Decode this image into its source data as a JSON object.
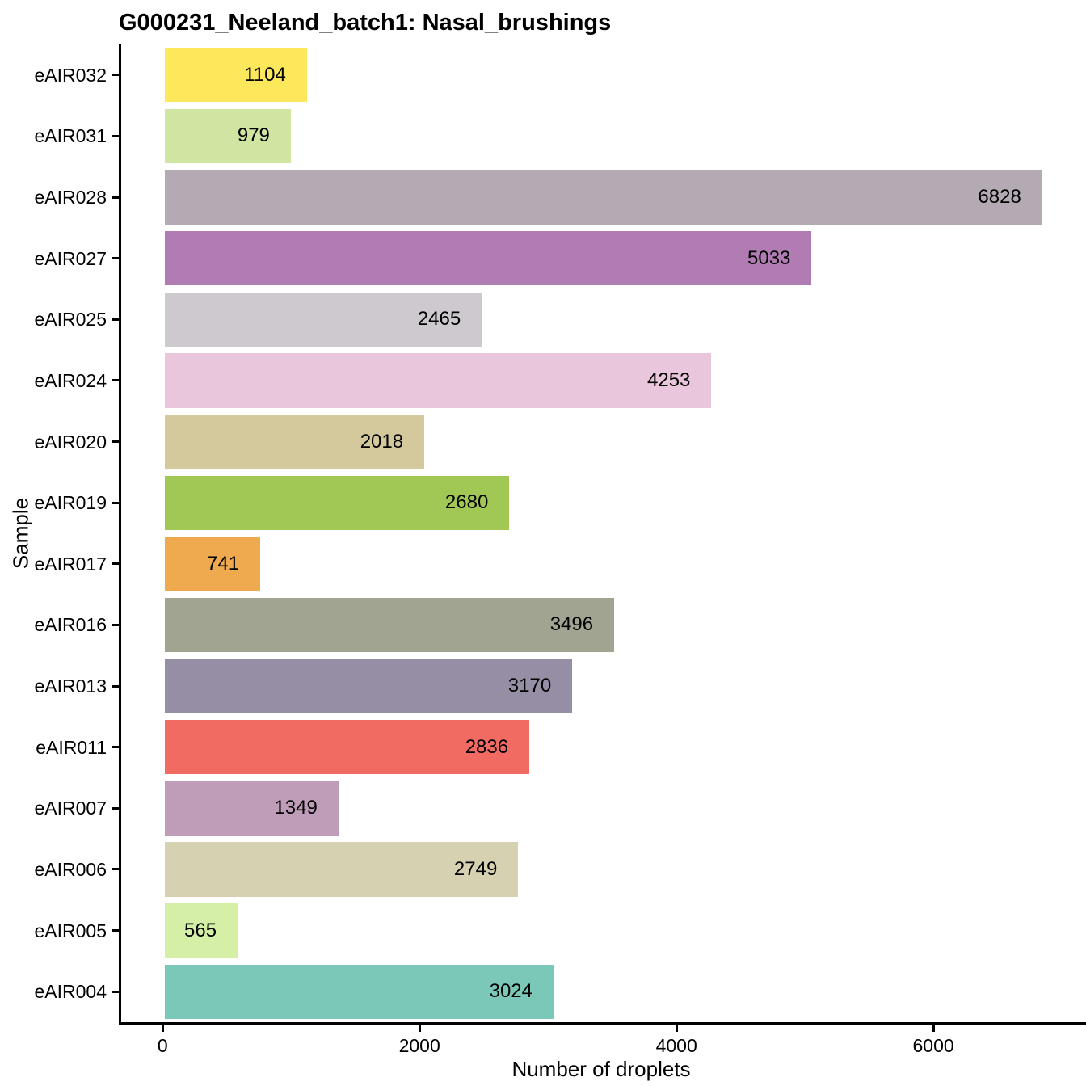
{
  "chart_data": {
    "type": "bar",
    "orientation": "horizontal",
    "title": "G000231_Neeland_batch1: Nasal_brushings",
    "xlabel": "Number of droplets",
    "ylabel": "Sample",
    "categories": [
      "eAIR032",
      "eAIR031",
      "eAIR028",
      "eAIR027",
      "eAIR025",
      "eAIR024",
      "eAIR020",
      "eAIR019",
      "eAIR017",
      "eAIR016",
      "eAIR013",
      "eAIR011",
      "eAIR007",
      "eAIR006",
      "eAIR005",
      "eAIR004"
    ],
    "values": [
      1104,
      979,
      6828,
      5033,
      2465,
      4253,
      2018,
      2680,
      741,
      3496,
      3170,
      2836,
      1349,
      2749,
      565,
      3024
    ],
    "bar_colors": [
      "#FDE75A",
      "#CFE5A1",
      "#B4AAB4",
      "#B17CB4",
      "#CDC9CE",
      "#EAC6DD",
      "#D4C99D",
      "#A1C754",
      "#EFAA4F",
      "#A2A492",
      "#958EA4",
      "#F26B63",
      "#BF9CB8",
      "#D6D2B1",
      "#D5EFA7",
      "#7BC8B9"
    ],
    "x_ticks": [
      0,
      2000,
      4000,
      6000
    ],
    "x_tick_labels": [
      "0",
      "2000",
      "4000",
      "6000"
    ],
    "xlim": [
      0,
      6828
    ],
    "axis_expansion": 0.05,
    "grid": false,
    "legend": "none",
    "axis_color": "#000000",
    "text_color": "#000000",
    "background": "#FFFFFF"
  }
}
